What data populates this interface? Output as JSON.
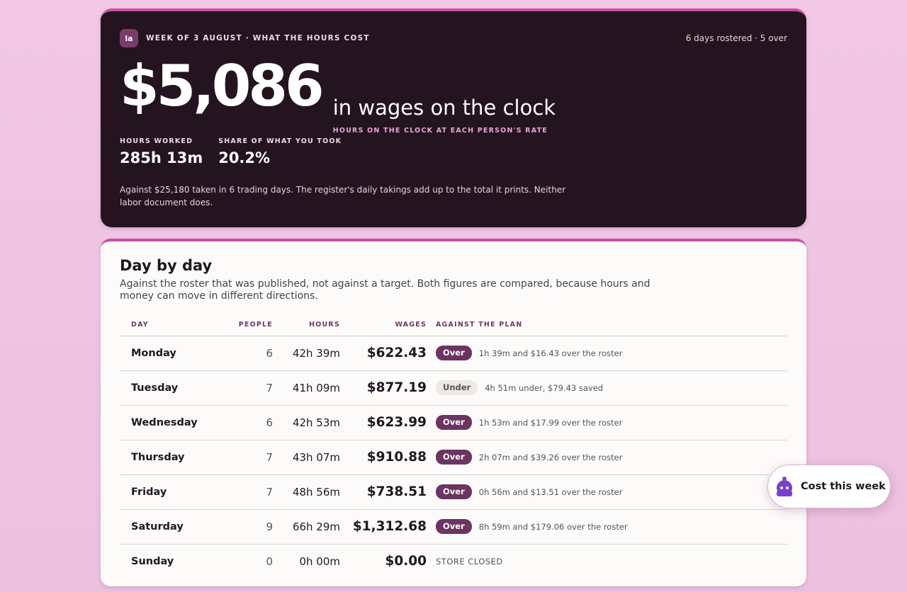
{
  "header": {
    "logo_text": "la",
    "eyebrow": "WEEK OF 3 AUGUST · WHAT THE HOURS COST",
    "meta": "6 days rostered · 5 over",
    "total": "$5,086",
    "headline": "in wages on the clock",
    "headline_sub": "HOURS ON THE CLOCK AT EACH PERSON'S RATE",
    "stats": [
      {
        "label": "HOURS WORKED",
        "value": "285h 13m"
      },
      {
        "label": "SHARE OF WHAT YOU TOOK",
        "value": "20.2%"
      }
    ],
    "note": "Against $25,180 taken in 6 trading days. The register's daily takings add up to the total it prints. Neither labor document does."
  },
  "daybyday": {
    "title": "Day by day",
    "description": "Against the roster that was published, not against a target. Both figures are compared, because hours and money can move in different directions.",
    "columns": {
      "day": "DAY",
      "people": "PEOPLE",
      "hours": "HOURS",
      "wages": "WAGES",
      "plan": "AGAINST THE PLAN"
    },
    "rows": [
      {
        "day": "Monday",
        "people": "6",
        "hours": "42h 39m",
        "wages": "$622.43",
        "status": "Over",
        "note": "1h 39m and $16.43 over the roster"
      },
      {
        "day": "Tuesday",
        "people": "7",
        "hours": "41h 09m",
        "wages": "$877.19",
        "status": "Under",
        "note": "4h 51m under, $79.43 saved"
      },
      {
        "day": "Wednesday",
        "people": "6",
        "hours": "42h 53m",
        "wages": "$623.99",
        "status": "Over",
        "note": "1h 53m and $17.99 over the roster"
      },
      {
        "day": "Thursday",
        "people": "7",
        "hours": "43h 07m",
        "wages": "$910.88",
        "status": "Over",
        "note": "2h 07m and $39.26 over the roster"
      },
      {
        "day": "Friday",
        "people": "7",
        "hours": "48h 56m",
        "wages": "$738.51",
        "status": "Over",
        "note": "0h 56m and $13.51 over the roster"
      },
      {
        "day": "Saturday",
        "people": "9",
        "hours": "66h 29m",
        "wages": "$1,312.68",
        "status": "Over",
        "note": "8h 59m and $179.06 over the roster"
      },
      {
        "day": "Sunday",
        "people": "0",
        "hours": "0h 00m",
        "wages": "$0.00",
        "status": "",
        "note": "STORE CLOSED"
      }
    ]
  },
  "fab": {
    "label": "Cost this week",
    "icon": "assistant-icon",
    "icon_color": "#7b3fd0"
  },
  "colors": {
    "accent": "#c5519f",
    "hero_bg": "#24141f",
    "badge_over": "#6b3461",
    "page_bg": "#f2c8e6"
  }
}
